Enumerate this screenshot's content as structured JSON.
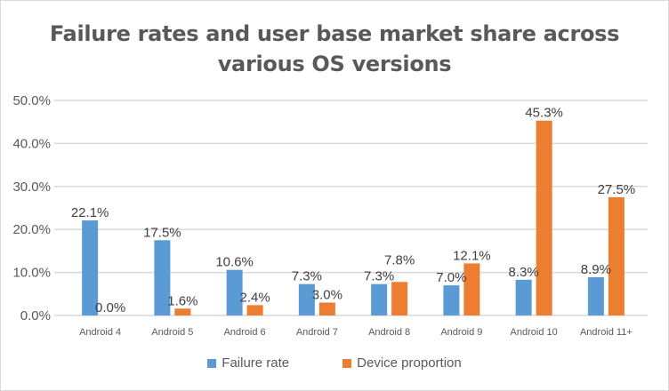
{
  "chart_data": {
    "type": "bar",
    "title": "Failure rates and user base market share across various OS versions",
    "title_lines": [
      "Failure rates and user base market share across",
      "various OS versions"
    ],
    "categories": [
      "Android 4",
      "Android 5",
      "Android 6",
      "Android 7",
      "Android 8",
      "Android 9",
      "Android 10",
      "Android 11+"
    ],
    "series": [
      {
        "name": "Failure rate",
        "color": "#5b9bd5",
        "values": [
          22.1,
          17.5,
          10.6,
          7.3,
          7.3,
          7.0,
          8.3,
          8.9
        ]
      },
      {
        "name": "Device proportion",
        "color": "#ed7d31",
        "values": [
          0.0,
          1.6,
          2.4,
          3.0,
          7.8,
          12.1,
          45.3,
          27.5
        ]
      }
    ],
    "data_labels": [
      [
        "22.1%",
        "17.5%",
        "10.6%",
        "7.3%",
        "7.3%",
        "7.0%",
        "8.3%",
        "8.9%"
      ],
      [
        "0.0%",
        "1.6%",
        "2.4%",
        "3.0%",
        "7.8%",
        "12.1%",
        "45.3%",
        "27.5%"
      ]
    ],
    "yticks": [
      "0.0%",
      "10.0%",
      "20.0%",
      "30.0%",
      "40.0%",
      "50.0%"
    ],
    "ylim": [
      0,
      50
    ],
    "xlabel": "",
    "ylabel": "",
    "grid": true,
    "legend": "bottom"
  }
}
